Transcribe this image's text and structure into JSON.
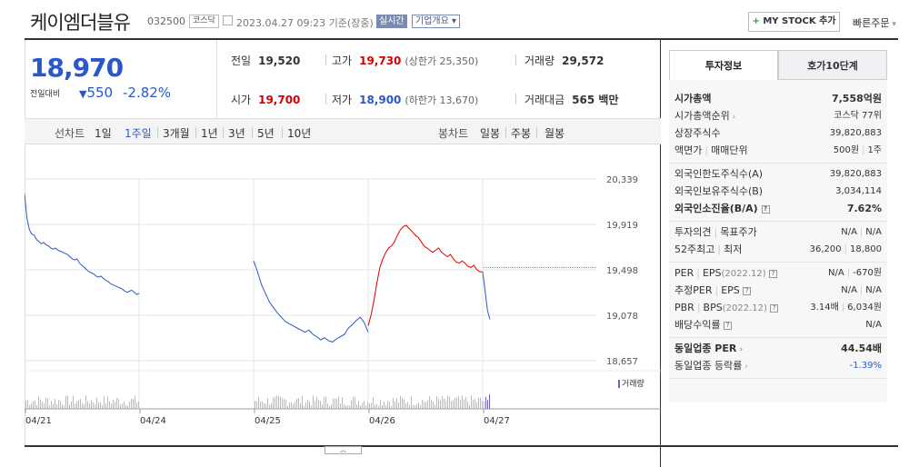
{
  "header": {
    "title": "케이엠더블유",
    "code": "032500",
    "market_badge": "코스닥",
    "datetime": "2023.04.27 09:23",
    "basis": "기준(장중)",
    "live_badge": "실시간",
    "company_info": "기업개요",
    "my_stock": "MY STOCK 추가",
    "quick_order": "빠른주문"
  },
  "summary": {
    "price": "18,970",
    "change_label": "전일대비",
    "change_value": "550",
    "change_pct": "-2.82%",
    "prev_label": "전일",
    "prev_value": "19,520",
    "high_label": "고가",
    "high_value": "19,730",
    "upper_limit": "(상한가 25,350)",
    "volume_label": "거래량",
    "volume_value": "29,572",
    "open_label": "시가",
    "open_value": "19,700",
    "low_label": "저가",
    "low_value": "18,900",
    "lower_limit": "(하한가 13,670)",
    "amount_label": "거래대금",
    "amount_value": "565 백만"
  },
  "period_bar": {
    "line_label": "선차트",
    "line_items": [
      "1일",
      "1주일",
      "3개월",
      "1년",
      "3년",
      "5년",
      "10년"
    ],
    "active_index": 1,
    "candle_label": "봉차트",
    "candle_items": [
      "일봉",
      "주봉",
      "월봉"
    ]
  },
  "chart_data": {
    "type": "line",
    "y_ticks": [
      "20,339",
      "19,919",
      "19,498",
      "19,078",
      "18,657"
    ],
    "ylim": [
      18657,
      20339
    ],
    "x_labels": [
      "04/21",
      "04/24",
      "04/25",
      "04/26",
      "04/27"
    ],
    "reference_price": 19520,
    "volume_label": "거래량",
    "series": [
      {
        "color": "#2a58c8",
        "values": [
          20200,
          19980,
          19870,
          19830,
          19820,
          19780,
          19760,
          19740,
          19750,
          19730,
          19720,
          19700,
          19690,
          19700,
          19680,
          19670,
          19660,
          19650,
          19640,
          19620,
          19600,
          19590,
          19600,
          19560,
          19540,
          19520,
          19500,
          19480,
          19470,
          19460,
          19440,
          19430,
          19440,
          19420,
          19400,
          19390,
          19370,
          19360,
          19350,
          19340,
          19330,
          19320,
          19300,
          19290,
          19300,
          19310,
          19290,
          19270,
          19280
        ]
      },
      {
        "color": "#2a58c8",
        "values": [
          19580,
          19480,
          19360,
          19280,
          19200,
          19150,
          19100,
          19060,
          19020,
          19000,
          18980,
          18960,
          18940,
          18920,
          18940,
          18900,
          18880,
          18850,
          18870,
          18840,
          18830,
          18860,
          18880,
          18900,
          18960,
          18990,
          19030,
          19060,
          19010,
          18920
        ]
      },
      {
        "color": "#d60000",
        "values": [
          18980,
          19080,
          19220,
          19380,
          19520,
          19600,
          19660,
          19700,
          19720,
          19760,
          19820,
          19870,
          19900,
          19910,
          19880,
          19850,
          19820,
          19800,
          19760,
          19720,
          19700,
          19680,
          19660,
          19680,
          19700,
          19660,
          19640,
          19620,
          19640,
          19600,
          19570,
          19560,
          19580,
          19560,
          19530,
          19520,
          19540,
          19500,
          19480,
          19480
        ]
      },
      {
        "color": "#2a58c8",
        "values": [
          19480,
          19300,
          19120,
          19040
        ]
      }
    ]
  },
  "right_panel": {
    "tabs": [
      "투자정보",
      "호가10단계"
    ],
    "groups": [
      [
        {
          "label": "시가총액",
          "value": "7,558억원",
          "bold": true
        },
        {
          "label": "시가총액순위",
          "value": "코스닥 77위",
          "arrow": true
        },
        {
          "label": "상장주식수",
          "value": "39,820,883"
        },
        {
          "label": "액면가",
          "label2": "매매단위",
          "value": "500원",
          "value2": "1주"
        }
      ],
      [
        {
          "label": "외국인한도주식수(A)",
          "value": "39,820,883"
        },
        {
          "label": "외국인보유주식수(B)",
          "value": "3,034,114"
        },
        {
          "label": "외국인소진율(B/A)",
          "value": "7.62%",
          "bold": true,
          "q": true
        }
      ],
      [
        {
          "label": "투자의견",
          "label2": "목표주가",
          "value": "N/A",
          "value2": "N/A"
        },
        {
          "label": "52주최고",
          "label2": "최저",
          "value": "36,200",
          "value2": "18,800"
        }
      ],
      [
        {
          "label": "PER",
          "label2": "EPS",
          "period": "(2022.12)",
          "q": true,
          "value": "N/A",
          "value2": "-670원"
        },
        {
          "label": "추정PER",
          "label2": "EPS",
          "q": true,
          "value": "N/A",
          "value2": "N/A"
        },
        {
          "label": "PBR",
          "label2": "BPS",
          "period": "(2022.12)",
          "q": true,
          "value": "3.14배",
          "value2": "6,034원"
        },
        {
          "label": "배당수익률",
          "q": true,
          "value": "N/A"
        }
      ],
      [
        {
          "label": "동일업종 PER",
          "value": "44.54배",
          "arrow": true,
          "bold": true
        },
        {
          "label": "동일업종 등락률",
          "value": "-1.39%",
          "arrow": true,
          "blue": true
        }
      ]
    ]
  }
}
